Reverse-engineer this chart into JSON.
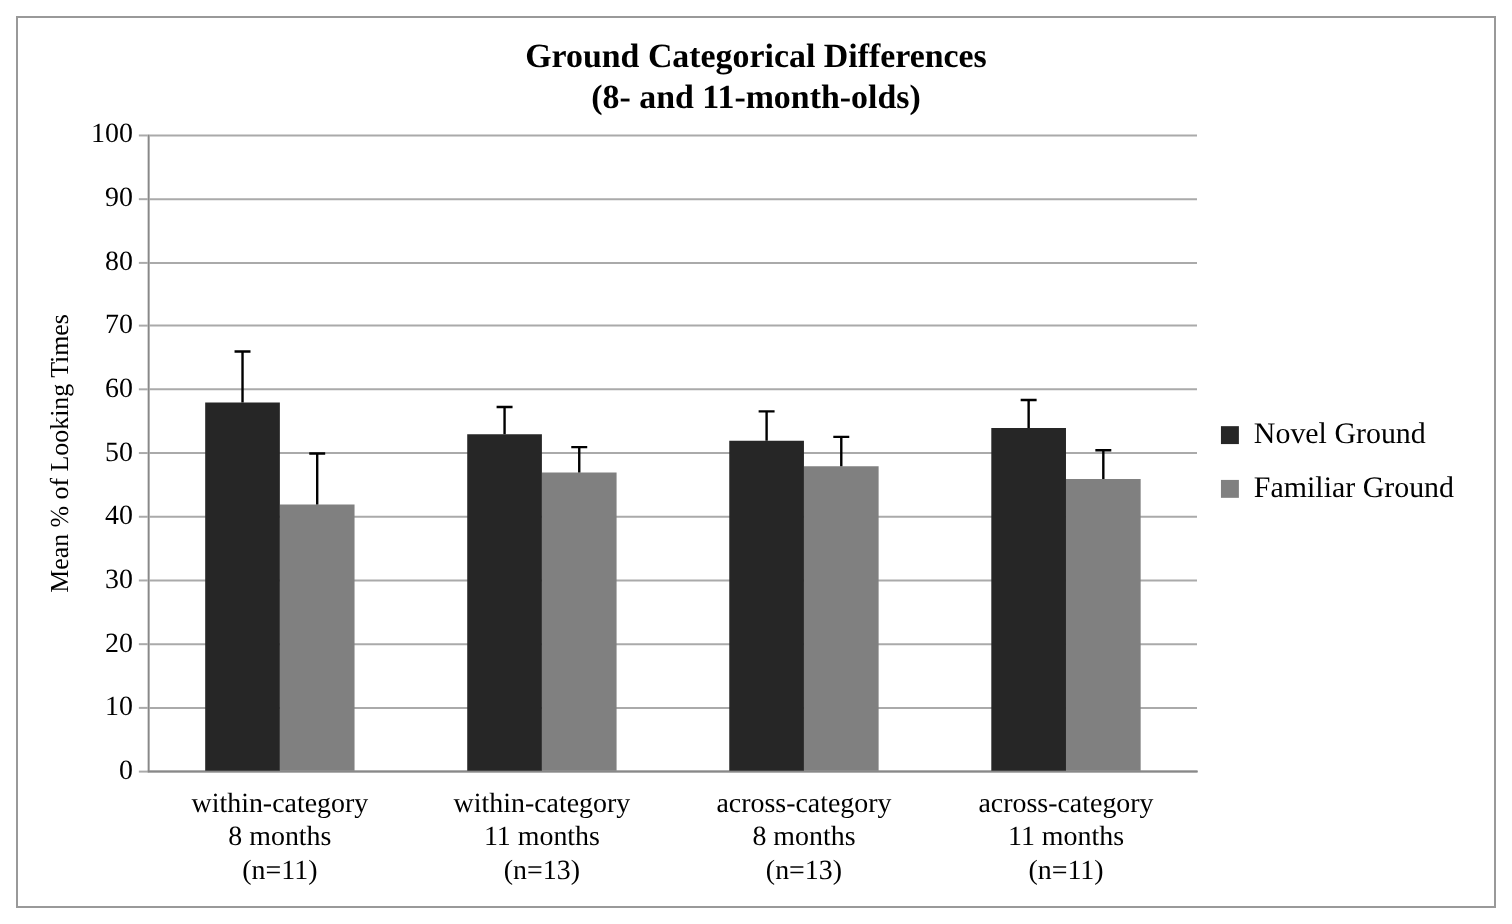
{
  "chart_data": {
    "type": "bar",
    "title": "Ground Categorical Differences\n(8- and 11-month-olds)",
    "ylabel": "Mean % of Looking Times",
    "categories": [
      "within-category\n8 months\n(n=11)",
      "within-category\n11 months\n(n=13)",
      "across-category\n8 months\n(n=13)",
      "across-category\n11 months\n(n=11)"
    ],
    "series": [
      {
        "name": "Novel Ground",
        "color": "#262626",
        "values": [
          58,
          53,
          52,
          54
        ],
        "errors": [
          [
            58,
            66
          ],
          [
            53,
            57.3
          ],
          [
            52,
            56.6
          ],
          [
            54,
            58.4
          ]
        ]
      },
      {
        "name": "Familiar Ground",
        "color": "#808080",
        "values": [
          42,
          47,
          48,
          46
        ],
        "errors": [
          [
            42,
            50
          ],
          [
            47,
            51
          ],
          [
            48,
            52.6
          ],
          [
            46,
            50.5
          ]
        ]
      }
    ],
    "ylim": [
      0,
      100
    ],
    "yticks": [
      0,
      10,
      20,
      30,
      40,
      50,
      60,
      70,
      80,
      90,
      100
    ],
    "grid": "y",
    "legend": "right"
  }
}
